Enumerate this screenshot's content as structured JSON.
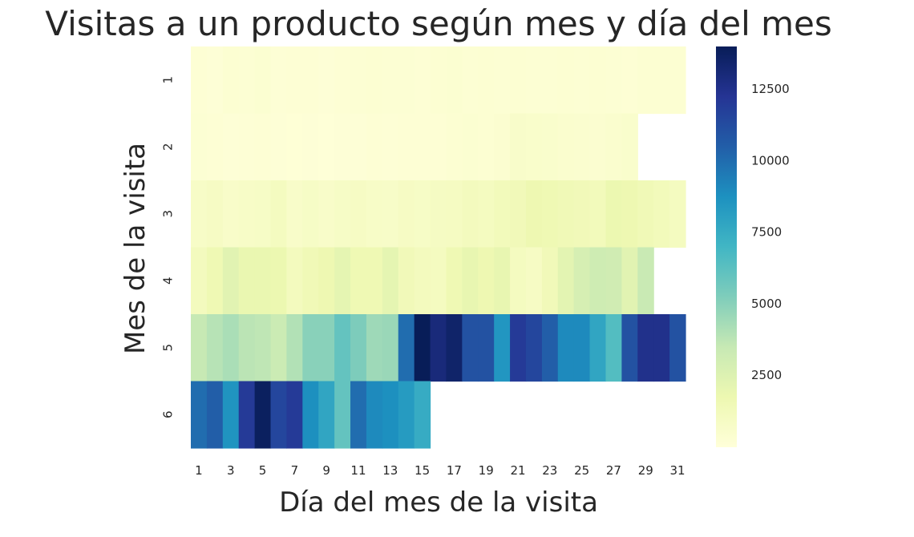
{
  "chart_data": {
    "type": "heatmap",
    "title": "Visitas a un producto según mes y día del mes",
    "xlabel": "Día del mes de la visita",
    "ylabel": "Mes de la visita",
    "x": [
      1,
      2,
      3,
      4,
      5,
      6,
      7,
      8,
      9,
      10,
      11,
      12,
      13,
      14,
      15,
      16,
      17,
      18,
      19,
      20,
      21,
      22,
      23,
      24,
      25,
      26,
      27,
      28,
      29,
      30,
      31
    ],
    "x_tick_labels": [
      "1",
      "3",
      "5",
      "7",
      "9",
      "11",
      "13",
      "15",
      "17",
      "19",
      "21",
      "23",
      "25",
      "27",
      "29",
      "31"
    ],
    "y": [
      1,
      2,
      3,
      4,
      5,
      6
    ],
    "y_tick_labels": [
      "1",
      "2",
      "3",
      "4",
      "5",
      "6"
    ],
    "values": [
      [
        200,
        150,
        300,
        250,
        350,
        180,
        220,
        200,
        150,
        200,
        250,
        300,
        280,
        250,
        220,
        300,
        350,
        280,
        300,
        250,
        320,
        280,
        250,
        300,
        280,
        300,
        250,
        200,
        300,
        300,
        320
      ],
      [
        250,
        200,
        150,
        180,
        200,
        150,
        120,
        150,
        100,
        150,
        150,
        200,
        180,
        200,
        220,
        200,
        300,
        350,
        320,
        400,
        650,
        600,
        550,
        500,
        450,
        400,
        500,
        550,
        null,
        null,
        null
      ],
      [
        800,
        900,
        700,
        800,
        850,
        1100,
        700,
        850,
        700,
        850,
        900,
        800,
        750,
        900,
        850,
        950,
        1000,
        1200,
        1100,
        1300,
        1400,
        1700,
        1600,
        1500,
        1400,
        1300,
        1800,
        1700,
        1500,
        1300,
        1100
      ],
      [
        1200,
        1600,
        2300,
        1900,
        1900,
        1800,
        1200,
        1500,
        1700,
        2100,
        1600,
        1600,
        2100,
        1400,
        1200,
        1100,
        1600,
        2000,
        1700,
        2000,
        1100,
        900,
        1400,
        2200,
        2800,
        3200,
        3100,
        2300,
        3400,
        null,
        null
      ],
      [
        3500,
        3900,
        4200,
        3800,
        3700,
        3300,
        4000,
        5000,
        5000,
        6000,
        5300,
        4500,
        4600,
        10000,
        14000,
        13000,
        13500,
        11000,
        11000,
        8500,
        12000,
        11500,
        10500,
        9000,
        9000,
        7800,
        6500,
        11000,
        12500,
        12500,
        11000
      ],
      [
        10000,
        10500,
        8600,
        12000,
        13800,
        11500,
        12000,
        8800,
        7800,
        6000,
        10000,
        9000,
        8800,
        8300,
        7500,
        null,
        null,
        null,
        null,
        null,
        null,
        null,
        null,
        null,
        null,
        null,
        null,
        null,
        null,
        null,
        null
      ]
    ],
    "colorbar": {
      "colormap": "YlGnBu",
      "range": [
        0,
        14000
      ],
      "ticks": [
        2500,
        5000,
        7500,
        10000,
        12500
      ]
    },
    "grid": false
  }
}
